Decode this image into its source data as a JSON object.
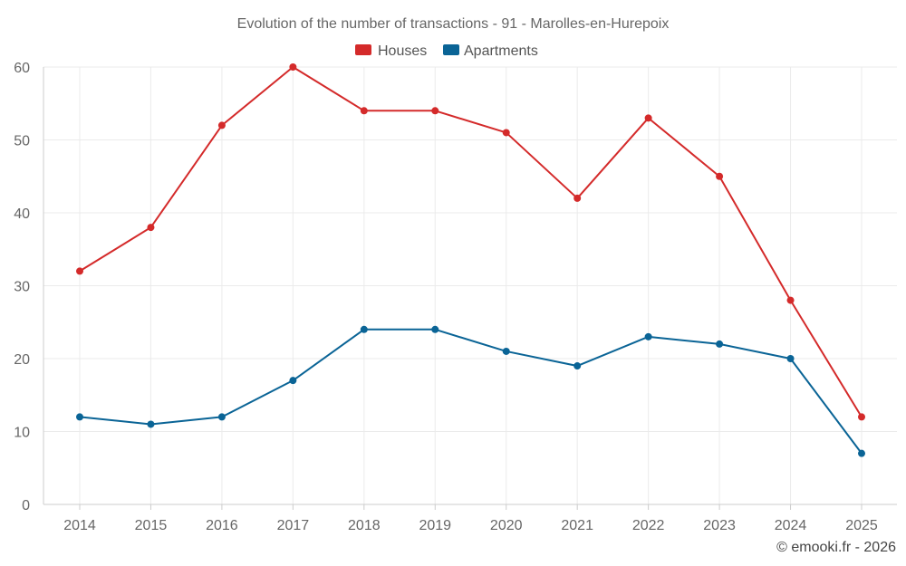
{
  "chart_data": {
    "type": "line",
    "title": "Evolution of the number of transactions - 91 - Marolles-en-Hurepoix",
    "categories": [
      "2014",
      "2015",
      "2016",
      "2017",
      "2018",
      "2019",
      "2020",
      "2021",
      "2022",
      "2023",
      "2024",
      "2025"
    ],
    "series": [
      {
        "name": "Houses",
        "color": "#d42a2a",
        "values": [
          32,
          38,
          52,
          60,
          54,
          54,
          51,
          42,
          53,
          45,
          28,
          12
        ]
      },
      {
        "name": "Apartments",
        "color": "#0a6496",
        "values": [
          12,
          11,
          12,
          17,
          24,
          24,
          21,
          19,
          23,
          22,
          20,
          7
        ]
      }
    ],
    "ylim": [
      0,
      60
    ],
    "yticks": [
      0,
      10,
      20,
      30,
      40,
      50,
      60
    ],
    "xlabel": "",
    "ylabel": "",
    "grid": true,
    "legend_position": "top-center"
  },
  "credit": "© emooki.fr - 2026"
}
